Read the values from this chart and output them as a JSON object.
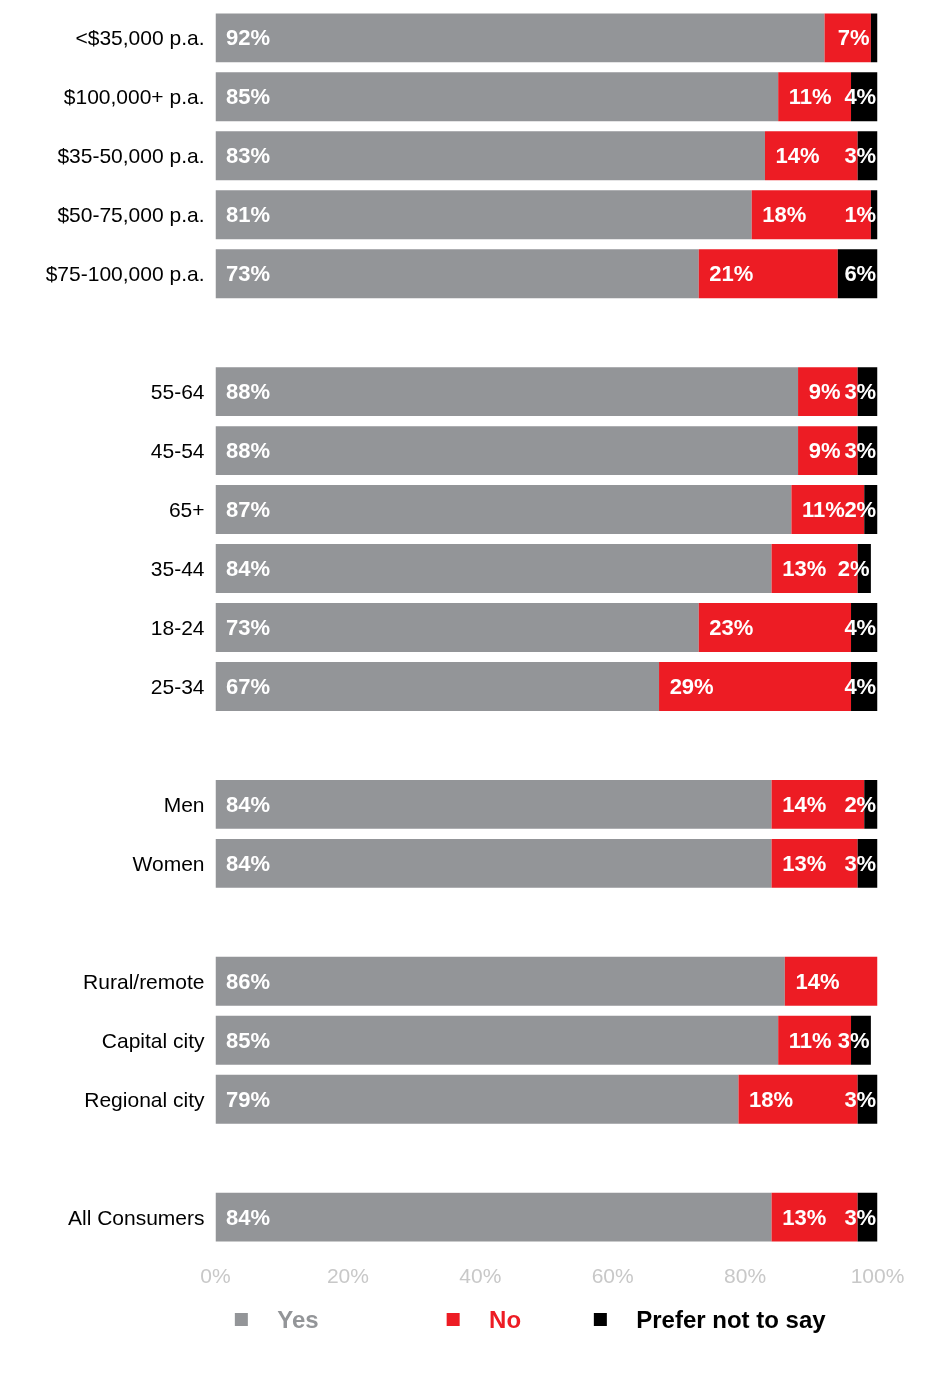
{
  "chart_data": {
    "type": "bar",
    "orientation": "horizontal",
    "stacked": true,
    "categories": [
      "<$35,000 p.a.",
      "$100,000+ p.a.",
      "$35-50,000 p.a.",
      "$50-75,000 p.a.",
      "$75-100,000 p.a.",
      null,
      "55-64",
      "45-54",
      "65+",
      "35-44",
      "18-24",
      "25-34",
      null,
      "Men",
      "Women",
      null,
      "Rural/remote",
      "Capital city",
      "Regional city",
      null,
      "All Consumers"
    ],
    "series": [
      {
        "name": "Yes",
        "color": "#939598",
        "values": [
          92,
          85,
          83,
          81,
          73,
          null,
          88,
          88,
          87,
          84,
          73,
          67,
          null,
          84,
          84,
          null,
          86,
          85,
          79,
          null,
          84
        ],
        "value_labels": [
          "92%",
          "85%",
          "83%",
          "81%",
          "73%",
          null,
          "88%",
          "88%",
          "87%",
          "84%",
          "73%",
          "67%",
          null,
          "84%",
          "84%",
          null,
          "86%",
          "85%",
          "79%",
          null,
          "84%"
        ]
      },
      {
        "name": "No",
        "color": "#ed1c24",
        "values": [
          7,
          11,
          14,
          18,
          21,
          null,
          9,
          9,
          11,
          13,
          23,
          29,
          null,
          14,
          13,
          null,
          14,
          11,
          18,
          null,
          13
        ],
        "value_labels": [
          "7%",
          "11%",
          "14%",
          "18%",
          "21%",
          null,
          "9%",
          "9%",
          "11%",
          "13%",
          "23%",
          "29%",
          null,
          "14%",
          "13%",
          null,
          "14%",
          "11%",
          "18%",
          null,
          "13%"
        ]
      },
      {
        "name": "Prefer not to say",
        "color": "#000000",
        "values": [
          1,
          4,
          3,
          1,
          6,
          null,
          3,
          3,
          2,
          2,
          4,
          4,
          null,
          2,
          3,
          null,
          null,
          3,
          3,
          null,
          3
        ],
        "value_labels": [
          null,
          "4%",
          "3%",
          "1%",
          "6%",
          null,
          "3%",
          "3%",
          "2%",
          "2%",
          "4%",
          "4%",
          null,
          "2%",
          "3%",
          null,
          null,
          "3%",
          "3%",
          null,
          "3%"
        ]
      }
    ],
    "xlim": [
      0,
      100
    ],
    "xticks": [
      {
        "value": 0,
        "label": "0%"
      },
      {
        "value": 20,
        "label": "20%"
      },
      {
        "value": 40,
        "label": "40%"
      },
      {
        "value": 60,
        "label": "60%"
      },
      {
        "value": 80,
        "label": "80%"
      },
      {
        "value": 100,
        "label": "100%"
      }
    ],
    "grid": false,
    "legend": "bottom"
  }
}
